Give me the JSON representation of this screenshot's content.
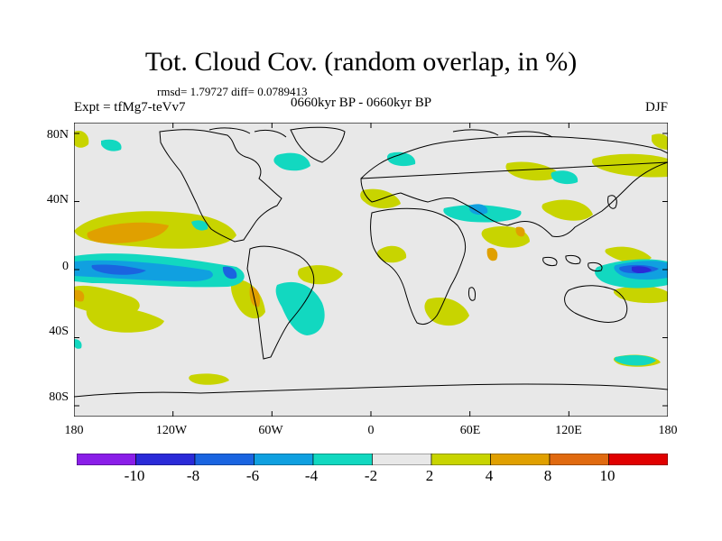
{
  "title": "Tot. Cloud Cov. (random overlap, in %)",
  "stats": "rmsd= 1.79727  diff= 0.0789413",
  "experiment": "Expt = tfMg7-teVv7",
  "period": "0660kyr BP - 0660kyr BP",
  "season": "DJF",
  "map": {
    "lat_ticks": [
      "80N",
      "40N",
      "0",
      "40S",
      "80S"
    ],
    "lon_ticks": [
      "180",
      "120W",
      "60W",
      "0",
      "60E",
      "120E",
      "180"
    ],
    "background": "#e8e8e8"
  },
  "colorbar": {
    "colors": [
      "#8a1ee8",
      "#2a2ad8",
      "#1a64e0",
      "#10a0e0",
      "#12d8c0",
      "#e8e8e8",
      "#c8d400",
      "#e0a000",
      "#e06a10",
      "#e00000"
    ],
    "labels": [
      "-10",
      "-8",
      "-6",
      "-4",
      "-2",
      "2",
      "4",
      "8",
      "10"
    ]
  },
  "colors": {
    "c_neg2": "#12d8c0",
    "c_neg4": "#10a0e0",
    "c_neg6": "#1a64e0",
    "c_neg8": "#2a2ad8",
    "c_pos2": "#c8d400",
    "c_pos4": "#e0a000",
    "c_pos8": "#e06a10"
  }
}
